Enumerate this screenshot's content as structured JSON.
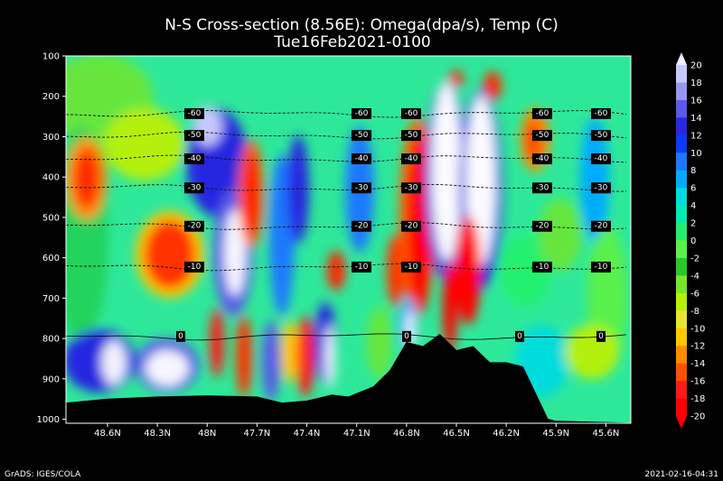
{
  "chart_data": {
    "type": "heatmap",
    "title": "N-S Cross-section (8.56E): Omega(dpa/s), Temp (C)",
    "subtitle": "Tue16Feb2021-0100",
    "y_axis": {
      "ticks": [
        100,
        200,
        300,
        400,
        500,
        600,
        700,
        800,
        900,
        1000
      ],
      "range": [
        100,
        1010
      ],
      "direction": "top-to-bottom"
    },
    "x_axis": {
      "ticks": [
        "48.6N",
        "48.3N",
        "48N",
        "47.7N",
        "47.4N",
        "47.1N",
        "46.8N",
        "46.5N",
        "46.2N",
        "45.9N",
        "45.6N"
      ],
      "range": [
        48.85,
        45.45
      ],
      "direction": "north-to-south"
    },
    "colorbar": {
      "levels": [
        20,
        18,
        16,
        14,
        12,
        10,
        8,
        6,
        4,
        2,
        0,
        -2,
        -4,
        -6,
        -8,
        -10,
        -12,
        -14,
        -16,
        -18,
        -20
      ],
      "colors": [
        "#f0f0ff",
        "#c8c8ff",
        "#9696f0",
        "#5a5ae6",
        "#2828e0",
        "#0a3cff",
        "#1e78ff",
        "#00aaff",
        "#00dcdc",
        "#00ebb4",
        "#23f06e",
        "#5af04b",
        "#28c828",
        "#78e628",
        "#b4f00a",
        "#e6e632",
        "#ffc800",
        "#ff8c00",
        "#ff5000",
        "#ff1a1a",
        "#ff0000"
      ]
    },
    "temperature_contours": [
      {
        "label": "-60",
        "p": 243
      },
      {
        "label": "-50",
        "p": 297
      },
      {
        "label": "-40",
        "p": 355
      },
      {
        "label": "-30",
        "p": 427
      },
      {
        "label": "-20",
        "p": 522
      },
      {
        "label": "-10",
        "p": 623
      },
      {
        "label": "0",
        "p": 795
      }
    ],
    "terrain_lat": [
      48.85,
      48.6,
      48.3,
      48.0,
      47.7,
      47.55,
      47.4,
      47.25,
      47.15,
      47.0,
      46.9,
      46.8,
      46.7,
      46.6,
      46.5,
      46.4,
      46.3,
      46.2,
      46.1,
      45.95,
      45.9,
      45.6,
      45.45
    ],
    "terrain_p": [
      960,
      950,
      945,
      942,
      945,
      960,
      955,
      940,
      945,
      920,
      880,
      810,
      820,
      790,
      830,
      820,
      860,
      860,
      870,
      1000,
      1005,
      1008,
      1010
    ]
  },
  "footer": {
    "left": "GrADS: IGES/COLA",
    "right": "2021-02-16-04:31"
  }
}
